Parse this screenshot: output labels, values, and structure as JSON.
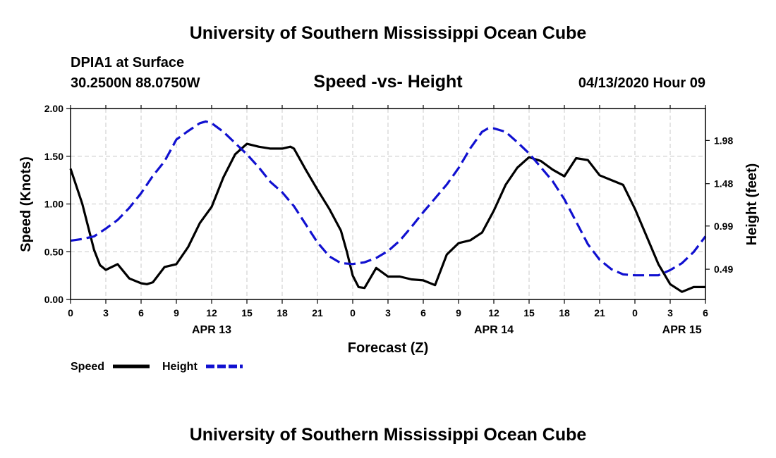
{
  "header": {
    "title_top": "University of Southern Mississippi Ocean Cube",
    "station": "DPIA1 at Surface",
    "coords": "30.2500N 88.0750W",
    "chart_title": "Speed -vs- Height",
    "timestamp": "04/13/2020 Hour 09"
  },
  "footer": {
    "title_bottom": "University of Southern Mississippi Ocean Cube"
  },
  "legend": {
    "speed_label": "Speed",
    "height_label": "Height"
  },
  "colors": {
    "speed": "#000000",
    "height": "#1010d0",
    "grid": "#c8c8c8"
  },
  "chart_data": {
    "type": "line",
    "title": "Speed -vs- Height",
    "xlabel": "Forecast (Z)",
    "ylabel_left": "Speed (Knots)",
    "ylabel_right": "Height (feet)",
    "x_range": [
      0,
      54
    ],
    "x_unit": "hours from 2020-04-13 00Z",
    "ylim_left": [
      0,
      2
    ],
    "ylim_right": [
      0.14,
      2.35
    ],
    "grid": true,
    "x_ticks": [
      {
        "x": 0,
        "label": "0"
      },
      {
        "x": 3,
        "label": "3"
      },
      {
        "x": 6,
        "label": "6"
      },
      {
        "x": 9,
        "label": "9"
      },
      {
        "x": 12,
        "label": "12"
      },
      {
        "x": 15,
        "label": "15"
      },
      {
        "x": 18,
        "label": "18"
      },
      {
        "x": 21,
        "label": "21"
      },
      {
        "x": 24,
        "label": "0"
      },
      {
        "x": 27,
        "label": "3"
      },
      {
        "x": 30,
        "label": "6"
      },
      {
        "x": 33,
        "label": "9"
      },
      {
        "x": 36,
        "label": "12"
      },
      {
        "x": 39,
        "label": "15"
      },
      {
        "x": 42,
        "label": "18"
      },
      {
        "x": 45,
        "label": "21"
      },
      {
        "x": 48,
        "label": "0"
      },
      {
        "x": 51,
        "label": "3"
      },
      {
        "x": 54,
        "label": "6"
      }
    ],
    "date_labels": [
      {
        "x": 12,
        "label": "APR 13"
      },
      {
        "x": 36,
        "label": "APR 14"
      },
      {
        "x": 52,
        "label": "APR 15"
      }
    ],
    "y_ticks_left": [
      "0.00",
      "0.50",
      "1.00",
      "1.50",
      "2.00"
    ],
    "y_ticks_left_values": [
      0,
      0.5,
      1.0,
      1.5,
      2.0
    ],
    "y_ticks_right": [
      "0.49",
      "0.99",
      "1.48",
      "1.98"
    ],
    "y_ticks_right_values": [
      0.49,
      0.99,
      1.48,
      1.98
    ],
    "series": [
      {
        "name": "Speed",
        "axis": "left",
        "style": "solid",
        "x": [
          0,
          1,
          2,
          2.5,
          3,
          4,
          5,
          6,
          6.5,
          7,
          8,
          9,
          10,
          11,
          12,
          13,
          14,
          15,
          16,
          17,
          18,
          18.7,
          19,
          20,
          21,
          22,
          23,
          23.5,
          24,
          24.5,
          25,
          26,
          27,
          28,
          29,
          30,
          31,
          32,
          33,
          34,
          35,
          36,
          37,
          38,
          39,
          40,
          41,
          42,
          43,
          44,
          45,
          46,
          47,
          48,
          49,
          50,
          51,
          52,
          53,
          54
        ],
        "values": [
          1.37,
          1.0,
          0.52,
          0.36,
          0.31,
          0.37,
          0.22,
          0.17,
          0.16,
          0.18,
          0.34,
          0.37,
          0.55,
          0.8,
          0.97,
          1.28,
          1.52,
          1.63,
          1.6,
          1.58,
          1.58,
          1.6,
          1.58,
          1.36,
          1.15,
          0.95,
          0.72,
          0.5,
          0.25,
          0.13,
          0.12,
          0.33,
          0.24,
          0.24,
          0.21,
          0.2,
          0.15,
          0.47,
          0.59,
          0.62,
          0.7,
          0.93,
          1.2,
          1.38,
          1.49,
          1.45,
          1.36,
          1.29,
          1.48,
          1.46,
          1.3,
          1.25,
          1.2,
          0.95,
          0.66,
          0.37,
          0.16,
          0.08,
          0.13,
          0.13
        ]
      },
      {
        "name": "Height",
        "axis": "right",
        "style": "dashed",
        "x": [
          0,
          1,
          2,
          3,
          4,
          5,
          6,
          7,
          8,
          9,
          10,
          11,
          11.5,
          12,
          13,
          14,
          15,
          16,
          17,
          18,
          19,
          20,
          21,
          22,
          23,
          24,
          25,
          26,
          27,
          28,
          29,
          30,
          31,
          32,
          33,
          34,
          35,
          35.5,
          36,
          37,
          38,
          39,
          40,
          41,
          42,
          43,
          44,
          45,
          46,
          47,
          48,
          49,
          50,
          51,
          52,
          53,
          54
        ],
        "values": [
          0.82,
          0.84,
          0.87,
          0.96,
          1.06,
          1.2,
          1.37,
          1.57,
          1.74,
          1.99,
          2.09,
          2.18,
          2.2,
          2.18,
          2.08,
          1.95,
          1.82,
          1.67,
          1.5,
          1.38,
          1.22,
          1.01,
          0.8,
          0.64,
          0.56,
          0.55,
          0.57,
          0.62,
          0.7,
          0.82,
          0.98,
          1.15,
          1.31,
          1.47,
          1.66,
          1.89,
          2.08,
          2.12,
          2.12,
          2.08,
          1.96,
          1.83,
          1.67,
          1.51,
          1.3,
          1.04,
          0.78,
          0.6,
          0.49,
          0.43,
          0.42,
          0.42,
          0.42,
          0.48,
          0.56,
          0.69,
          0.87
        ]
      }
    ]
  }
}
